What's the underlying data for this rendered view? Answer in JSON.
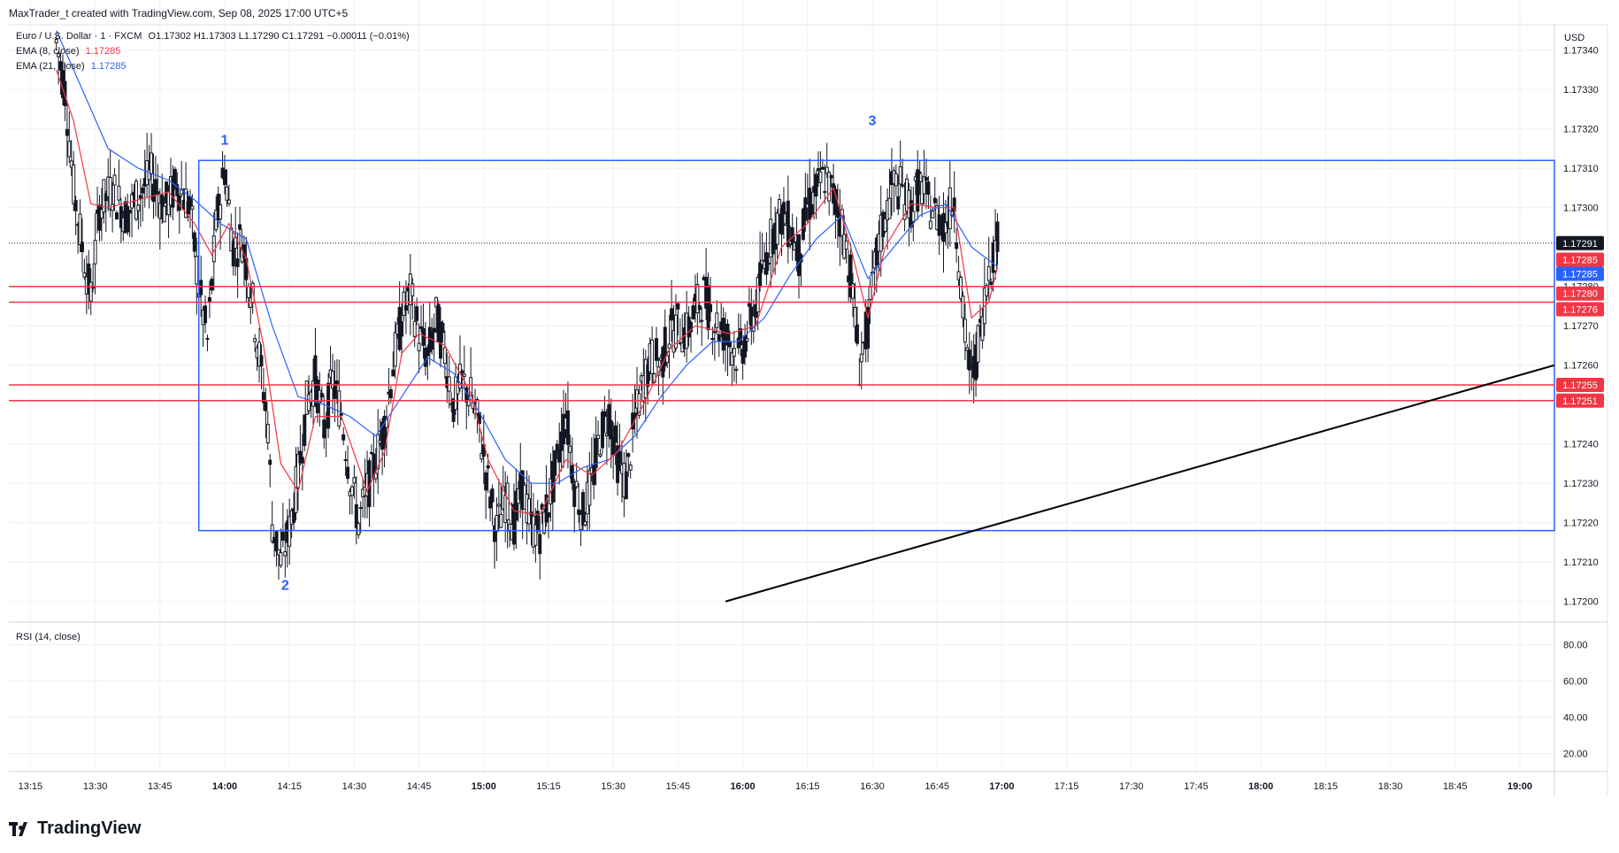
{
  "header": {
    "publisher_line": "MaxTrader_t created with TradingView.com, Sep 08, 2025 17:00 UTC+5"
  },
  "legend": {
    "symbol": "Euro / U.S. Dollar · 1 · FXCM",
    "ohlc": "O1.17302  H1.17303  L1.17290  C1.17291  −0.00011 (−0.01%)",
    "ema_fast_label": "EMA (8, close)",
    "ema_fast_value": "1.17285",
    "ema_slow_label": "EMA (21, close)",
    "ema_slow_value": "1.17285",
    "rsi_label": "RSI (14, close)"
  },
  "axis": {
    "currency": "USD"
  },
  "branding": {
    "logo_text": "TradingView"
  },
  "colors": {
    "bull": "#131722",
    "bear": "#131722",
    "ema_fast": "#f23645",
    "ema_slow": "#2962ff",
    "level_line": "#f23645",
    "range_box": "#2962ff",
    "trendline": "#000000",
    "grid": "#eef0f4",
    "label_blue": "#2962ff"
  },
  "chart_data": {
    "type": "candlestick",
    "instrument": "Euro / U.S. Dollar",
    "timeframe_minutes": 1,
    "price_axis": {
      "ylim": [
        1.17195,
        1.17346
      ],
      "ticks": [
        "1.17340",
        "1.17330",
        "1.17320",
        "1.17310",
        "1.17300",
        "1.17280",
        "1.17270",
        "1.17260",
        "1.17240",
        "1.17230",
        "1.17220",
        "1.17210",
        "1.17200"
      ]
    },
    "time_axis": {
      "xlim": [
        "13:10",
        "19:08"
      ],
      "ticks": [
        {
          "label": "13:15",
          "time": "13:15",
          "bold": false
        },
        {
          "label": "13:30",
          "time": "13:30",
          "bold": false
        },
        {
          "label": "13:45",
          "time": "13:45",
          "bold": false
        },
        {
          "label": "14:00",
          "time": "14:00",
          "bold": true
        },
        {
          "label": "14:15",
          "time": "14:15",
          "bold": false
        },
        {
          "label": "14:30",
          "time": "14:30",
          "bold": false
        },
        {
          "label": "14:45",
          "time": "14:45",
          "bold": false
        },
        {
          "label": "15:00",
          "time": "15:00",
          "bold": true
        },
        {
          "label": "15:15",
          "time": "15:15",
          "bold": false
        },
        {
          "label": "15:30",
          "time": "15:30",
          "bold": false
        },
        {
          "label": "15:45",
          "time": "15:45",
          "bold": false
        },
        {
          "label": "16:00",
          "time": "16:00",
          "bold": true
        },
        {
          "label": "16:15",
          "time": "16:15",
          "bold": false
        },
        {
          "label": "16:30",
          "time": "16:30",
          "bold": false
        },
        {
          "label": "16:45",
          "time": "16:45",
          "bold": false
        },
        {
          "label": "17:00",
          "time": "17:00",
          "bold": true
        },
        {
          "label": "17:15",
          "time": "17:15",
          "bold": false
        },
        {
          "label": "17:30",
          "time": "17:30",
          "bold": false
        },
        {
          "label": "17:45",
          "time": "17:45",
          "bold": false
        },
        {
          "label": "18:00",
          "time": "18:00",
          "bold": true
        },
        {
          "label": "18:15",
          "time": "18:15",
          "bold": false
        },
        {
          "label": "18:30",
          "time": "18:30",
          "bold": false
        },
        {
          "label": "18:45",
          "time": "18:45",
          "bold": false
        },
        {
          "label": "19:00",
          "time": "19:00",
          "bold": true
        }
      ]
    },
    "price_path": {
      "start": "13:21",
      "end": "16:59",
      "points": [
        [
          "13:21",
          1.17342
        ],
        [
          "13:23",
          1.1733
        ],
        [
          "13:25",
          1.17305
        ],
        [
          "13:27",
          1.1729
        ],
        [
          "13:29",
          1.17277
        ],
        [
          "13:31",
          1.173
        ],
        [
          "13:34",
          1.17305
        ],
        [
          "13:37",
          1.17298
        ],
        [
          "13:40",
          1.17303
        ],
        [
          "13:43",
          1.17308
        ],
        [
          "13:46",
          1.173
        ],
        [
          "13:49",
          1.17306
        ],
        [
          "13:52",
          1.173
        ],
        [
          "13:54",
          1.1728
        ],
        [
          "13:56",
          1.17266
        ],
        [
          "13:58",
          1.17295
        ],
        [
          "14:00",
          1.1731
        ],
        [
          "14:02",
          1.1729
        ],
        [
          "14:04",
          1.17292
        ],
        [
          "14:06",
          1.1728
        ],
        [
          "14:08",
          1.17262
        ],
        [
          "14:10",
          1.17245
        ],
        [
          "14:11",
          1.1722
        ],
        [
          "14:13",
          1.1721
        ],
        [
          "14:15",
          1.17218
        ],
        [
          "14:17",
          1.17232
        ],
        [
          "14:19",
          1.1725
        ],
        [
          "14:21",
          1.17257
        ],
        [
          "14:23",
          1.17244
        ],
        [
          "14:25",
          1.17256
        ],
        [
          "14:27",
          1.17248
        ],
        [
          "14:29",
          1.17232
        ],
        [
          "14:31",
          1.1722
        ],
        [
          "14:33",
          1.17228
        ],
        [
          "14:35",
          1.17236
        ],
        [
          "14:37",
          1.17245
        ],
        [
          "14:39",
          1.1726
        ],
        [
          "14:41",
          1.17272
        ],
        [
          "14:43",
          1.17278
        ],
        [
          "14:45",
          1.17268
        ],
        [
          "14:47",
          1.17262
        ],
        [
          "14:49",
          1.17272
        ],
        [
          "14:51",
          1.17263
        ],
        [
          "14:53",
          1.1725
        ],
        [
          "14:55",
          1.17256
        ],
        [
          "14:57",
          1.17252
        ],
        [
          "14:59",
          1.17244
        ],
        [
          "15:01",
          1.1723
        ],
        [
          "15:03",
          1.17218
        ],
        [
          "15:05",
          1.17226
        ],
        [
          "15:07",
          1.1722
        ],
        [
          "15:09",
          1.17229
        ],
        [
          "15:11",
          1.17219
        ],
        [
          "15:13",
          1.17218
        ],
        [
          "15:15",
          1.17225
        ],
        [
          "15:17",
          1.17235
        ],
        [
          "15:19",
          1.17248
        ],
        [
          "15:21",
          1.1723
        ],
        [
          "15:23",
          1.17222
        ],
        [
          "15:25",
          1.1723
        ],
        [
          "15:27",
          1.17242
        ],
        [
          "15:29",
          1.17248
        ],
        [
          "15:31",
          1.17236
        ],
        [
          "15:33",
          1.1723
        ],
        [
          "15:35",
          1.17246
        ],
        [
          "15:37",
          1.17256
        ],
        [
          "15:39",
          1.17262
        ],
        [
          "15:41",
          1.1726
        ],
        [
          "15:43",
          1.17268
        ],
        [
          "15:45",
          1.1727
        ],
        [
          "15:47",
          1.17268
        ],
        [
          "15:49",
          1.17274
        ],
        [
          "15:51",
          1.17278
        ],
        [
          "15:53",
          1.17272
        ],
        [
          "15:55",
          1.17269
        ],
        [
          "15:57",
          1.17266
        ],
        [
          "15:59",
          1.17262
        ],
        [
          "16:01",
          1.17268
        ],
        [
          "16:03",
          1.17275
        ],
        [
          "16:05",
          1.17286
        ],
        [
          "16:07",
          1.17294
        ],
        [
          "16:09",
          1.17298
        ],
        [
          "16:11",
          1.17295
        ],
        [
          "16:13",
          1.17288
        ],
        [
          "16:15",
          1.173
        ],
        [
          "16:17",
          1.17304
        ],
        [
          "16:19",
          1.17308
        ],
        [
          "16:21",
          1.17303
        ],
        [
          "16:23",
          1.17296
        ],
        [
          "16:25",
          1.17283
        ],
        [
          "16:27",
          1.1726
        ],
        [
          "16:29",
          1.1727
        ],
        [
          "16:31",
          1.17288
        ],
        [
          "16:33",
          1.17298
        ],
        [
          "16:35",
          1.17306
        ],
        [
          "16:37",
          1.17304
        ],
        [
          "16:39",
          1.173
        ],
        [
          "16:41",
          1.17306
        ],
        [
          "16:43",
          1.17301
        ],
        [
          "16:45",
          1.17298
        ],
        [
          "16:47",
          1.17296
        ],
        [
          "16:49",
          1.17303
        ],
        [
          "16:51",
          1.17272
        ],
        [
          "16:53",
          1.17256
        ],
        [
          "16:55",
          1.17268
        ],
        [
          "16:57",
          1.17285
        ],
        [
          "16:59",
          1.17291
        ]
      ]
    },
    "ema_8": [
      [
        "13:21",
        1.17335
      ],
      [
        "13:25",
        1.17322
      ],
      [
        "13:29",
        1.17301
      ],
      [
        "13:33",
        1.173
      ],
      [
        "13:40",
        1.17302
      ],
      [
        "13:47",
        1.17304
      ],
      [
        "13:53",
        1.17296
      ],
      [
        "13:57",
        1.17288
      ],
      [
        "14:01",
        1.17296
      ],
      [
        "14:05",
        1.17287
      ],
      [
        "14:09",
        1.17265
      ],
      [
        "14:13",
        1.17235
      ],
      [
        "14:17",
        1.17228
      ],
      [
        "14:21",
        1.17247
      ],
      [
        "14:27",
        1.17247
      ],
      [
        "14:33",
        1.17228
      ],
      [
        "14:37",
        1.17238
      ],
      [
        "14:41",
        1.17263
      ],
      [
        "14:45",
        1.17268
      ],
      [
        "14:51",
        1.17265
      ],
      [
        "14:57",
        1.17253
      ],
      [
        "15:01",
        1.17236
      ],
      [
        "15:07",
        1.17223
      ],
      [
        "15:13",
        1.17222
      ],
      [
        "15:19",
        1.17236
      ],
      [
        "15:25",
        1.17232
      ],
      [
        "15:31",
        1.17238
      ],
      [
        "15:37",
        1.1725
      ],
      [
        "15:43",
        1.17264
      ],
      [
        "15:49",
        1.1727
      ],
      [
        "15:57",
        1.17268
      ],
      [
        "16:03",
        1.1727
      ],
      [
        "16:09",
        1.1729
      ],
      [
        "16:15",
        1.17296
      ],
      [
        "16:21",
        1.17305
      ],
      [
        "16:25",
        1.1729
      ],
      [
        "16:29",
        1.17272
      ],
      [
        "16:33",
        1.1729
      ],
      [
        "16:39",
        1.17301
      ],
      [
        "16:45",
        1.173
      ],
      [
        "16:49",
        1.173
      ],
      [
        "16:53",
        1.17272
      ],
      [
        "16:57",
        1.17276
      ],
      [
        "16:59",
        1.17285
      ]
    ],
    "ema_21": [
      [
        "13:21",
        1.17345
      ],
      [
        "13:27",
        1.1733
      ],
      [
        "13:33",
        1.17315
      ],
      [
        "13:40",
        1.1731
      ],
      [
        "13:47",
        1.17307
      ],
      [
        "13:53",
        1.17302
      ],
      [
        "13:59",
        1.17296
      ],
      [
        "14:05",
        1.17292
      ],
      [
        "14:11",
        1.1727
      ],
      [
        "14:17",
        1.17252
      ],
      [
        "14:23",
        1.1725
      ],
      [
        "14:29",
        1.17247
      ],
      [
        "14:35",
        1.17242
      ],
      [
        "14:41",
        1.17252
      ],
      [
        "14:47",
        1.17262
      ],
      [
        "14:53",
        1.17258
      ],
      [
        "14:59",
        1.17248
      ],
      [
        "15:05",
        1.17236
      ],
      [
        "15:11",
        1.1723
      ],
      [
        "15:17",
        1.1723
      ],
      [
        "15:23",
        1.17234
      ],
      [
        "15:29",
        1.17236
      ],
      [
        "15:35",
        1.17242
      ],
      [
        "15:41",
        1.17252
      ],
      [
        "15:47",
        1.1726
      ],
      [
        "15:53",
        1.17266
      ],
      [
        "15:59",
        1.17266
      ],
      [
        "16:05",
        1.17272
      ],
      [
        "16:11",
        1.17283
      ],
      [
        "16:17",
        1.17292
      ],
      [
        "16:23",
        1.17298
      ],
      [
        "16:29",
        1.17282
      ],
      [
        "16:35",
        1.1729
      ],
      [
        "16:41",
        1.17298
      ],
      [
        "16:47",
        1.17301
      ],
      [
        "16:53",
        1.1729
      ],
      [
        "16:59",
        1.17285
      ]
    ],
    "current_price": {
      "value": 1.17291,
      "label": "1.17291"
    },
    "horizontal_levels": [
      {
        "value": 1.1728,
        "label": "1.17280"
      },
      {
        "value": 1.17276,
        "label": "1.17276"
      },
      {
        "value": 1.17255,
        "label": "1.17255"
      },
      {
        "value": 1.17251,
        "label": "1.17251"
      }
    ],
    "ema_price_labels": [
      {
        "value": 1.17285,
        "label": "1.17285",
        "series": "ema_fast"
      },
      {
        "value": 1.17285,
        "label": "1.17285",
        "series": "ema_slow"
      }
    ],
    "range_box": {
      "time_start": "13:54",
      "top": 1.17312,
      "bottom": 1.17218
    },
    "trendline": {
      "from": [
        "15:56",
        1.172
      ],
      "to": [
        "19:08",
        1.1726
      ]
    },
    "annotations": [
      {
        "text": "1",
        "time": "14:00",
        "price": 1.17316
      },
      {
        "text": "2",
        "time": "14:14",
        "price": 1.17203
      },
      {
        "text": "3",
        "time": "16:30",
        "price": 1.17321
      }
    ],
    "rsi": {
      "label": "RSI (14, close)",
      "ticks": [
        "80.00",
        "60.00",
        "40.00",
        "20.00"
      ],
      "ylim": [
        10,
        90
      ]
    }
  }
}
